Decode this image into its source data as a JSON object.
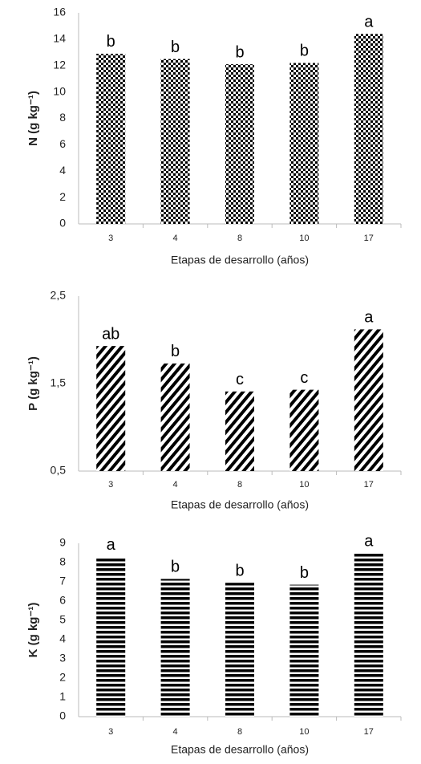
{
  "chart_data": [
    {
      "type": "bar",
      "ylabel": "N (g kg⁻¹)",
      "xlabel": "Etapas de desarrollo (años)",
      "categories": [
        "3",
        "4",
        "8",
        "10",
        "17"
      ],
      "values": [
        12.9,
        12.5,
        12.1,
        12.2,
        14.4
      ],
      "letters": [
        "b",
        "b",
        "b",
        "b",
        "a"
      ],
      "color": "#000000",
      "pattern": "checker",
      "ylim": [
        0,
        16
      ],
      "yticks": [
        0,
        2,
        4,
        6,
        8,
        10,
        12,
        14,
        16
      ]
    },
    {
      "type": "bar",
      "ylabel": "P (g kg⁻¹)",
      "xlabel": "Etapas de desarrollo (años)",
      "categories": [
        "3",
        "4",
        "8",
        "10",
        "17"
      ],
      "values": [
        1.93,
        1.73,
        1.41,
        1.43,
        2.12
      ],
      "letters": [
        "ab",
        "b",
        "c",
        "c",
        "a"
      ],
      "color": "#000000",
      "pattern": "diagonal",
      "ylim": [
        0.5,
        2.5
      ],
      "yticks": [
        {
          "value": 0.5,
          "label": "0,5"
        },
        {
          "value": 1.5,
          "label": "1,5"
        },
        {
          "value": 2.5,
          "label": "2,5"
        }
      ]
    },
    {
      "type": "bar",
      "ylabel": "K (g kg⁻¹)",
      "xlabel": "Etapas de desarrollo (años)",
      "categories": [
        "3",
        "4",
        "8",
        "10",
        "17"
      ],
      "values": [
        8.3,
        7.15,
        6.95,
        6.85,
        8.5
      ],
      "letters": [
        "a",
        "b",
        "b",
        "b",
        "a"
      ],
      "color": "#000000",
      "pattern": "horizontal",
      "ylim": [
        0,
        9
      ],
      "yticks": [
        0,
        1,
        2,
        3,
        4,
        5,
        6,
        7,
        8,
        9
      ]
    }
  ]
}
